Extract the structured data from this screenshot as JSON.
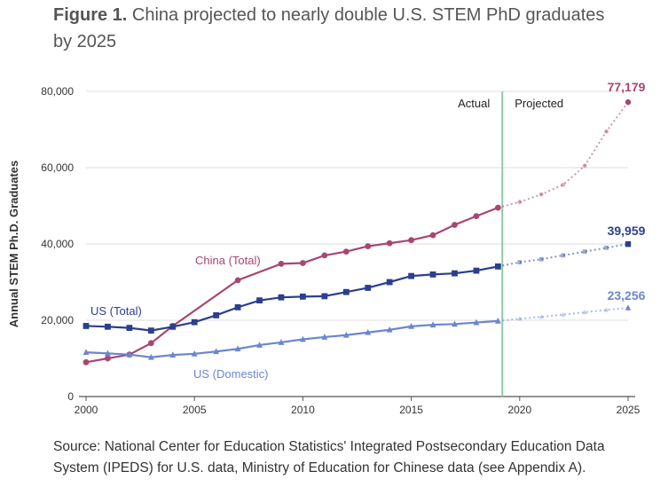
{
  "figure": {
    "label": "Figure 1.",
    "title": "China projected to nearly double U.S. STEM PhD graduates by 2025"
  },
  "source_note": "Source: National Center for Education Statistics' Integrated Postsecondary Education Data System (IPEDS) for U.S. data, Ministry of Education for Chinese data (see Appendix A).",
  "colors": {
    "china": "#a84672",
    "us_total": "#2b3f8f",
    "us_domestic": "#6b86cf",
    "divider": "#8fc9a8",
    "axis": "#333333",
    "grid": "#dddddd"
  },
  "chart_data": {
    "type": "line",
    "ylabel": "Annual STEM Ph.D. Graduates",
    "xlabel": "",
    "xlim": [
      2000,
      2025
    ],
    "ylim": [
      0,
      80000
    ],
    "x_ticks": [
      2000,
      2005,
      2010,
      2015,
      2020,
      2025
    ],
    "y_ticks": [
      0,
      20000,
      40000,
      60000,
      80000
    ],
    "y_tick_labels": [
      "0",
      "20,000",
      "40,000",
      "60,000",
      "80,000"
    ],
    "grid": "horizontal",
    "divider_year": 2019.2,
    "region_labels": {
      "actual": "Actual",
      "projected": "Projected"
    },
    "series": [
      {
        "name": "China (Total)",
        "marker": "circle",
        "actual": [
          [
            2000,
            9000
          ],
          [
            2001,
            10000
          ],
          [
            2002,
            11000
          ],
          [
            2003,
            14000
          ],
          [
            2004,
            18500
          ],
          [
            2007,
            30500
          ],
          [
            2009,
            34800
          ],
          [
            2010,
            35000
          ],
          [
            2011,
            37000
          ],
          [
            2012,
            38000
          ],
          [
            2013,
            39400
          ],
          [
            2014,
            40200
          ],
          [
            2015,
            41000
          ],
          [
            2016,
            42300
          ],
          [
            2017,
            45000
          ],
          [
            2018,
            47300
          ],
          [
            2019,
            49500
          ]
        ],
        "projected": [
          [
            2019,
            49500
          ],
          [
            2020,
            51000
          ],
          [
            2021,
            53000
          ],
          [
            2022,
            55500
          ],
          [
            2023,
            60500
          ],
          [
            2024,
            69500
          ],
          [
            2025,
            77179
          ]
        ],
        "end_label": "77,179"
      },
      {
        "name": "US (Total)",
        "marker": "square",
        "actual": [
          [
            2000,
            18500
          ],
          [
            2001,
            18300
          ],
          [
            2002,
            18000
          ],
          [
            2003,
            17300
          ],
          [
            2004,
            18300
          ],
          [
            2005,
            19500
          ],
          [
            2006,
            21300
          ],
          [
            2007,
            23400
          ],
          [
            2008,
            25200
          ],
          [
            2009,
            26000
          ],
          [
            2010,
            26200
          ],
          [
            2011,
            26300
          ],
          [
            2012,
            27400
          ],
          [
            2013,
            28500
          ],
          [
            2014,
            30000
          ],
          [
            2015,
            31600
          ],
          [
            2016,
            32000
          ],
          [
            2017,
            32300
          ],
          [
            2018,
            33000
          ],
          [
            2019,
            34100
          ]
        ],
        "projected": [
          [
            2019,
            34100
          ],
          [
            2020,
            35200
          ],
          [
            2021,
            36000
          ],
          [
            2022,
            37000
          ],
          [
            2023,
            38000
          ],
          [
            2024,
            39000
          ],
          [
            2025,
            39959
          ]
        ],
        "end_label": "39,959"
      },
      {
        "name": "US (Domestic)",
        "marker": "triangle",
        "actual": [
          [
            2000,
            11600
          ],
          [
            2001,
            11300
          ],
          [
            2002,
            11000
          ],
          [
            2003,
            10300
          ],
          [
            2004,
            10900
          ],
          [
            2005,
            11200
          ],
          [
            2006,
            11800
          ],
          [
            2007,
            12500
          ],
          [
            2008,
            13500
          ],
          [
            2009,
            14200
          ],
          [
            2010,
            15000
          ],
          [
            2011,
            15600
          ],
          [
            2012,
            16100
          ],
          [
            2013,
            16800
          ],
          [
            2014,
            17500
          ],
          [
            2015,
            18400
          ],
          [
            2016,
            18800
          ],
          [
            2017,
            19000
          ],
          [
            2018,
            19400
          ],
          [
            2019,
            19800
          ]
        ],
        "projected": [
          [
            2019,
            19800
          ],
          [
            2020,
            20400
          ],
          [
            2021,
            20900
          ],
          [
            2022,
            21500
          ],
          [
            2023,
            22100
          ],
          [
            2024,
            22700
          ],
          [
            2025,
            23256
          ]
        ],
        "end_label": "23,256"
      }
    ]
  }
}
